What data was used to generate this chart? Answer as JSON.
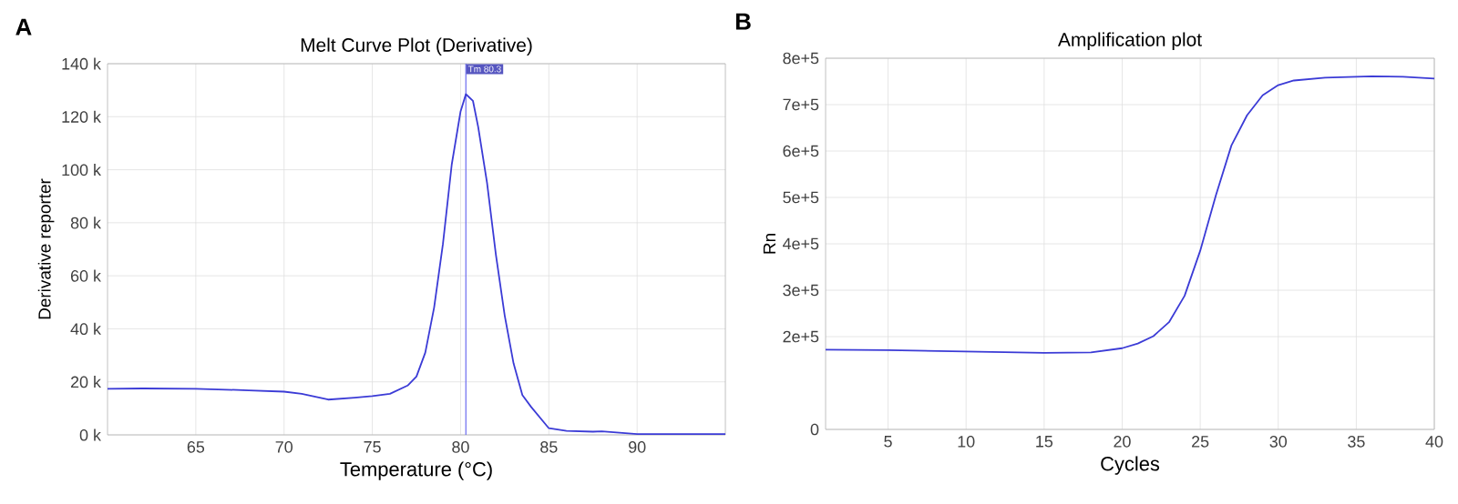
{
  "chart_data": [
    {
      "type": "line",
      "title": "Melt Curve Plot (Derivative)",
      "xlabel": "Temperature (°C)",
      "ylabel": "Derivative reporter",
      "annotations": [
        "A"
      ],
      "series": [
        {
          "color": "#3b3bd6",
          "x": [
            60,
            62,
            65,
            68,
            70,
            71,
            72.5,
            74,
            75,
            76,
            77,
            77.5,
            78,
            78.5,
            79,
            79.5,
            80,
            80.3,
            80.7,
            81,
            81.5,
            82,
            82.5,
            83,
            83.5,
            84,
            85,
            86,
            87.5,
            88,
            89,
            90,
            95
          ],
          "values": [
            17400,
            17500,
            17400,
            16800,
            16300,
            15500,
            13300,
            14000,
            14600,
            15500,
            18600,
            22000,
            31000,
            48000,
            72000,
            102000,
            122000,
            128500,
            126000,
            116000,
            95000,
            68000,
            45000,
            27000,
            15000,
            10500,
            2500,
            1500,
            1200,
            1300,
            800,
            300,
            300
          ]
        }
      ],
      "xlim": [
        60,
        95
      ],
      "xticks": [
        65,
        70,
        75,
        80,
        85,
        90
      ],
      "ylim": [
        0,
        140000
      ],
      "yticks": [
        {
          "value": 0,
          "label": "0 k"
        },
        {
          "value": 20000,
          "label": "20 k"
        },
        {
          "value": 40000,
          "label": "40 k"
        },
        {
          "value": 60000,
          "label": "60 k"
        },
        {
          "value": 80000,
          "label": "80 k"
        },
        {
          "value": 100000,
          "label": "100 k"
        },
        {
          "value": 120000,
          "label": "120 k"
        },
        {
          "value": 140000,
          "label": "140 k"
        }
      ],
      "ref_lines": [
        {
          "axis": "x",
          "value": 80.3,
          "label": "Tm 80.3",
          "color": "#6b6bf0"
        }
      ],
      "grid": true,
      "marker": "none",
      "line_style": "solid"
    },
    {
      "type": "line",
      "title": "Amplification plot",
      "xlabel": "Cycles",
      "ylabel": "Rn",
      "annotations": [
        "B"
      ],
      "series": [
        {
          "color": "#3b3bd6",
          "x": [
            1,
            5,
            10,
            15,
            18,
            20,
            21,
            22,
            23,
            24,
            25,
            26,
            27,
            28,
            29,
            30,
            31,
            33,
            36,
            38,
            40
          ],
          "values": [
            172000,
            171000,
            168000,
            165000,
            166000,
            175000,
            185000,
            201000,
            231000,
            288000,
            385000,
            504000,
            612000,
            677000,
            720000,
            742000,
            752000,
            758000,
            761000,
            760000,
            756000
          ]
        }
      ],
      "xlim": [
        1,
        40
      ],
      "xticks": [
        5,
        10,
        15,
        20,
        25,
        30,
        35,
        40
      ],
      "ylim": [
        0,
        800000
      ],
      "yticks": [
        0,
        {
          "value": 200000,
          "label": "2e+5"
        },
        {
          "value": 300000,
          "label": "3e+5"
        },
        {
          "value": 400000,
          "label": "4e+5"
        },
        {
          "value": 500000,
          "label": "5e+5"
        },
        {
          "value": 600000,
          "label": "6e+5"
        },
        {
          "value": 700000,
          "label": "7e+5"
        },
        {
          "value": 800000,
          "label": "8e+5"
        }
      ],
      "grid": true,
      "marker": "none",
      "line_style": "solid"
    }
  ]
}
